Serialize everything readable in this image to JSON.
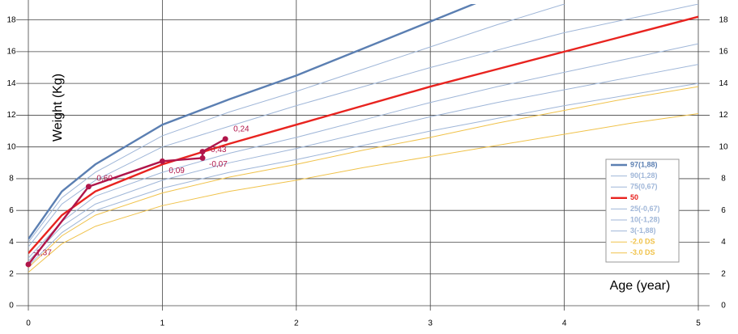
{
  "chart_data": {
    "type": "line",
    "y_label": "Weight (Kg)",
    "x_label": "Age (year)",
    "xlim": [
      0,
      5
    ],
    "xticks": [
      0,
      1,
      2,
      3,
      4,
      5
    ],
    "ylim": [
      0,
      19
    ],
    "yticks": [
      0,
      2,
      4,
      6,
      8,
      10,
      12,
      14,
      16,
      18
    ],
    "grid": true,
    "legend": "right",
    "x": [
      0,
      0.25,
      0.5,
      1,
      1.5,
      2,
      2.5,
      3,
      3.5,
      4,
      4.5,
      5
    ],
    "series": [
      {
        "name": "97(1,88)",
        "color": "#5b7fb2",
        "width": 2.4,
        "values": [
          4.2,
          7.2,
          8.9,
          11.4,
          13.0,
          14.5,
          16.2,
          17.9,
          19.6,
          null,
          null,
          null
        ]
      },
      {
        "name": "90(1,28)",
        "color": "#9fb6d8",
        "width": 1,
        "values": [
          4.0,
          6.8,
          8.4,
          10.7,
          12.2,
          13.5,
          14.9,
          16.3,
          17.7,
          19.0,
          20.2,
          null
        ]
      },
      {
        "name": "75(0,67)",
        "color": "#9fb6d8",
        "width": 1,
        "values": [
          3.7,
          6.4,
          7.9,
          10.0,
          11.3,
          12.6,
          13.8,
          15.0,
          16.1,
          17.2,
          18.1,
          19.0
        ]
      },
      {
        "name": "50",
        "color": "#e8231f",
        "width": 2.4,
        "values": [
          3.3,
          5.7,
          7.2,
          8.9,
          10.2,
          11.4,
          12.6,
          13.8,
          14.9,
          16.0,
          17.1,
          18.2
        ]
      },
      {
        "name": "25(-0,67)",
        "color": "#9fb6d8",
        "width": 1,
        "values": [
          3.0,
          5.3,
          6.9,
          8.4,
          9.6,
          10.6,
          11.7,
          12.8,
          13.8,
          14.7,
          15.6,
          16.5
        ]
      },
      {
        "name": "10(-1,28)",
        "color": "#9fb6d8",
        "width": 1,
        "values": [
          2.8,
          5.0,
          6.4,
          7.9,
          9.0,
          9.9,
          10.9,
          11.9,
          12.8,
          13.6,
          14.4,
          15.2
        ]
      },
      {
        "name": "3(-1,88)",
        "color": "#9fb6d8",
        "width": 1,
        "values": [
          2.5,
          4.6,
          6.0,
          7.4,
          8.4,
          9.2,
          10.1,
          11.0,
          11.8,
          12.6,
          13.3,
          14.0
        ]
      },
      {
        "name": "-2.0 DS",
        "color": "#f0c24a",
        "width": 1,
        "values": [
          2.4,
          4.4,
          5.7,
          7.1,
          8.1,
          8.9,
          9.8,
          10.6,
          11.5,
          12.3,
          13.1,
          13.8
        ]
      },
      {
        "name": "-3.0 DS",
        "color": "#f0c24a",
        "width": 1,
        "values": [
          2.1,
          3.9,
          5.0,
          6.3,
          7.2,
          7.9,
          8.7,
          9.4,
          10.1,
          10.8,
          11.5,
          12.1
        ]
      }
    ],
    "patient": {
      "color": "#b0154a",
      "x": [
        0,
        0.45,
        1.0,
        1.3,
        1.3,
        1.47
      ],
      "values": [
        2.6,
        7.5,
        9.1,
        9.3,
        9.7,
        10.5
      ],
      "z_labels": [
        "-1,37",
        "0,60",
        "0,09",
        "-0,07",
        "0,43",
        "0,24"
      ]
    }
  }
}
